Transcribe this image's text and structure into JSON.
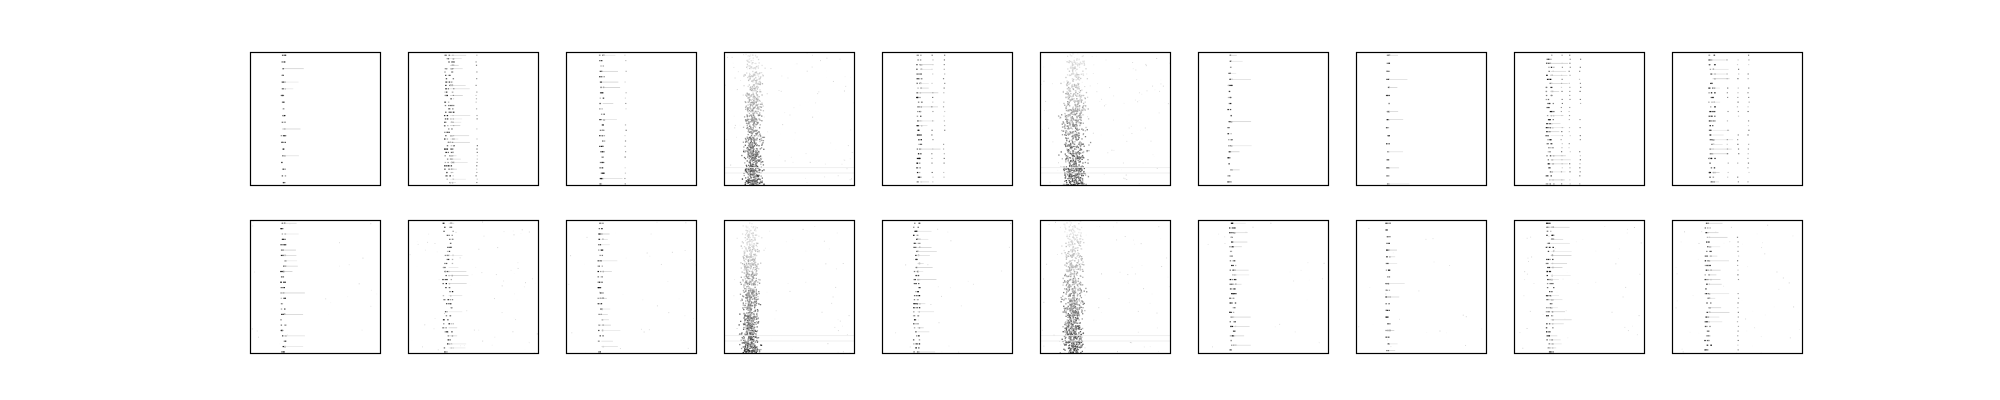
{
  "chart_data": {
    "type": "heatmap",
    "grid": {
      "rows": 2,
      "cols": 10
    },
    "colormap": [
      "#ffffff",
      "#000000"
    ],
    "frame_color": "#000000",
    "axes_ticks": false,
    "rows": [
      {
        "row": "top",
        "panels": [
          {
            "style": "stripe",
            "center": 0.25,
            "spread": 0.008,
            "gap": 0.022,
            "rowspacing": 0.05,
            "side": [],
            "bg": 0.0
          },
          {
            "style": "stripe",
            "center": 0.31,
            "spread": 0.018,
            "gap": 0.022,
            "rowspacing": 0.025,
            "side": [
              0.34,
              0.52
            ],
            "bg": 0.0
          },
          {
            "style": "stripe",
            "center": 0.27,
            "spread": 0.01,
            "gap": 0.022,
            "rowspacing": 0.04,
            "side": [
              0.45
            ],
            "bg": 0.0
          },
          {
            "style": "smear",
            "center": 0.22,
            "spread": 0.03,
            "gap": 0.02,
            "rowspacing": 0.02,
            "side": [],
            "bg": 0.04
          },
          {
            "style": "stripe",
            "center": 0.28,
            "spread": 0.01,
            "gap": 0.022,
            "rowspacing": 0.035,
            "side": [
              0.38,
              0.47
            ],
            "bg": 0.0
          },
          {
            "style": "smear",
            "center": 0.26,
            "spread": 0.04,
            "gap": 0.02,
            "rowspacing": 0.02,
            "side": [],
            "bg": 0.05
          },
          {
            "style": "stripe",
            "center": 0.24,
            "spread": 0.008,
            "gap": 0.022,
            "rowspacing": 0.045,
            "side": [],
            "bg": 0.0
          },
          {
            "style": "stripe",
            "center": 0.24,
            "spread": 0.006,
            "gap": 0.022,
            "rowspacing": 0.06,
            "side": [],
            "bg": 0.0
          },
          {
            "style": "stripe",
            "center": 0.27,
            "spread": 0.015,
            "gap": 0.022,
            "rowspacing": 0.03,
            "side": [
              0.36,
              0.42,
              0.5
            ],
            "bg": 0.0
          },
          {
            "style": "stripe",
            "center": 0.3,
            "spread": 0.012,
            "gap": 0.022,
            "rowspacing": 0.035,
            "side": [
              0.42,
              0.5,
              0.58
            ],
            "bg": 0.0
          }
        ]
      },
      {
        "row": "bottom",
        "panels": [
          {
            "style": "stripe",
            "center": 0.25,
            "spread": 0.01,
            "gap": 0.02,
            "rowspacing": 0.04,
            "side": [],
            "bg": 0.01
          },
          {
            "style": "stripe",
            "center": 0.3,
            "spread": 0.02,
            "gap": 0.02,
            "rowspacing": 0.03,
            "side": [],
            "bg": 0.03
          },
          {
            "style": "stripe",
            "center": 0.26,
            "spread": 0.01,
            "gap": 0.02,
            "rowspacing": 0.04,
            "side": [],
            "bg": 0.015
          },
          {
            "style": "smear",
            "center": 0.2,
            "spread": 0.03,
            "gap": 0.02,
            "rowspacing": 0.02,
            "side": [],
            "bg": 0.02
          },
          {
            "style": "stripe",
            "center": 0.26,
            "spread": 0.012,
            "gap": 0.02,
            "rowspacing": 0.03,
            "side": [],
            "bg": 0.01
          },
          {
            "style": "smear",
            "center": 0.25,
            "spread": 0.035,
            "gap": 0.02,
            "rowspacing": 0.02,
            "side": [],
            "bg": 0.03
          },
          {
            "style": "stripe",
            "center": 0.26,
            "spread": 0.012,
            "gap": 0.02,
            "rowspacing": 0.035,
            "side": [],
            "bg": 0.01
          },
          {
            "style": "stripe",
            "center": 0.24,
            "spread": 0.008,
            "gap": 0.02,
            "rowspacing": 0.05,
            "side": [],
            "bg": 0.01
          },
          {
            "style": "stripe",
            "center": 0.27,
            "spread": 0.014,
            "gap": 0.02,
            "rowspacing": 0.03,
            "side": [],
            "bg": 0.02
          },
          {
            "style": "stripe",
            "center": 0.27,
            "spread": 0.012,
            "gap": 0.02,
            "rowspacing": 0.035,
            "side": [
              0.5
            ],
            "bg": 0.02
          }
        ]
      }
    ]
  }
}
